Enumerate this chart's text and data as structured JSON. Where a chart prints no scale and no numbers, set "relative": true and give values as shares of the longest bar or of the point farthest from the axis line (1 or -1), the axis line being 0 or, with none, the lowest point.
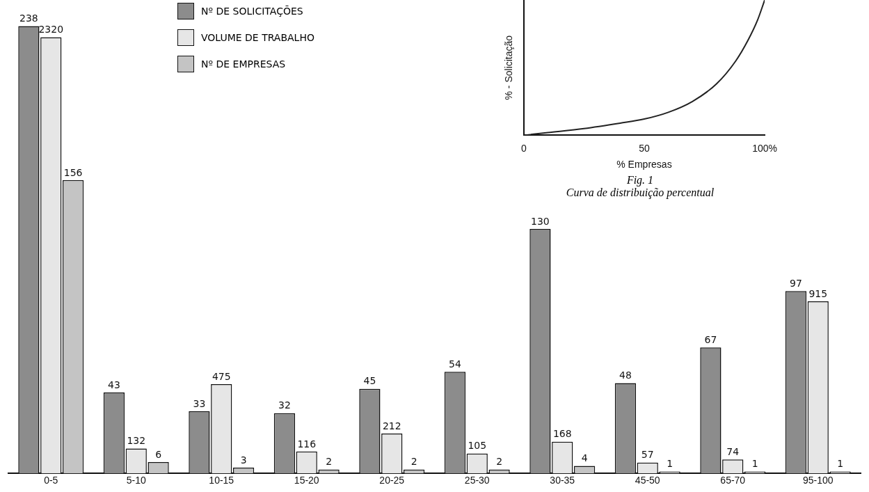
{
  "chart_data": [
    {
      "type": "bar",
      "categories": [
        "0-5",
        "5-10",
        "10-15",
        "15-20",
        "20-25",
        "25-30",
        "30-35",
        "45-50",
        "65-70",
        "95-100"
      ],
      "series": [
        {
          "name": "Nº DE SOLICITAÇÕES",
          "color": "#8c8c8c",
          "values": [
            238,
            43,
            33,
            32,
            45,
            54,
            130,
            48,
            67,
            97
          ]
        },
        {
          "name": "VOLUME DE TRABALHO",
          "color": "#e6e6e6",
          "axis": "y2",
          "values": [
            2320,
            132,
            475,
            116,
            212,
            105,
            168,
            57,
            74,
            915
          ]
        },
        {
          "name": "Nº DE EMPRESAS",
          "color": "#c4c4c4",
          "values": [
            156,
            6,
            3,
            2,
            2,
            2,
            4,
            1,
            1,
            1
          ]
        }
      ],
      "ylim": [
        0,
        240
      ],
      "y2lim": [
        0,
        2400
      ],
      "tick_labels": "x",
      "data_labels": true,
      "legend": "top left",
      "grid": false
    },
    {
      "type": "line",
      "title": "Fig. 1",
      "subtitle": "Curva de distribuição percentual",
      "xlabel": "% Empresas",
      "ylabel": "% - Solicitação",
      "relative": true,
      "xlim": [
        0,
        100
      ],
      "xticks": [
        0,
        50,
        {
          "value": 100,
          "label": "100%"
        }
      ],
      "marker": "none",
      "grid": false,
      "series": [
        {
          "color": "#222222",
          "x": [
            0,
            10,
            25,
            40,
            50,
            60,
            70,
            80,
            88,
            93,
            97,
            100
          ],
          "values": [
            0,
            0.02,
            0.05,
            0.09,
            0.12,
            0.17,
            0.25,
            0.38,
            0.55,
            0.7,
            0.85,
            1
          ]
        }
      ]
    }
  ]
}
